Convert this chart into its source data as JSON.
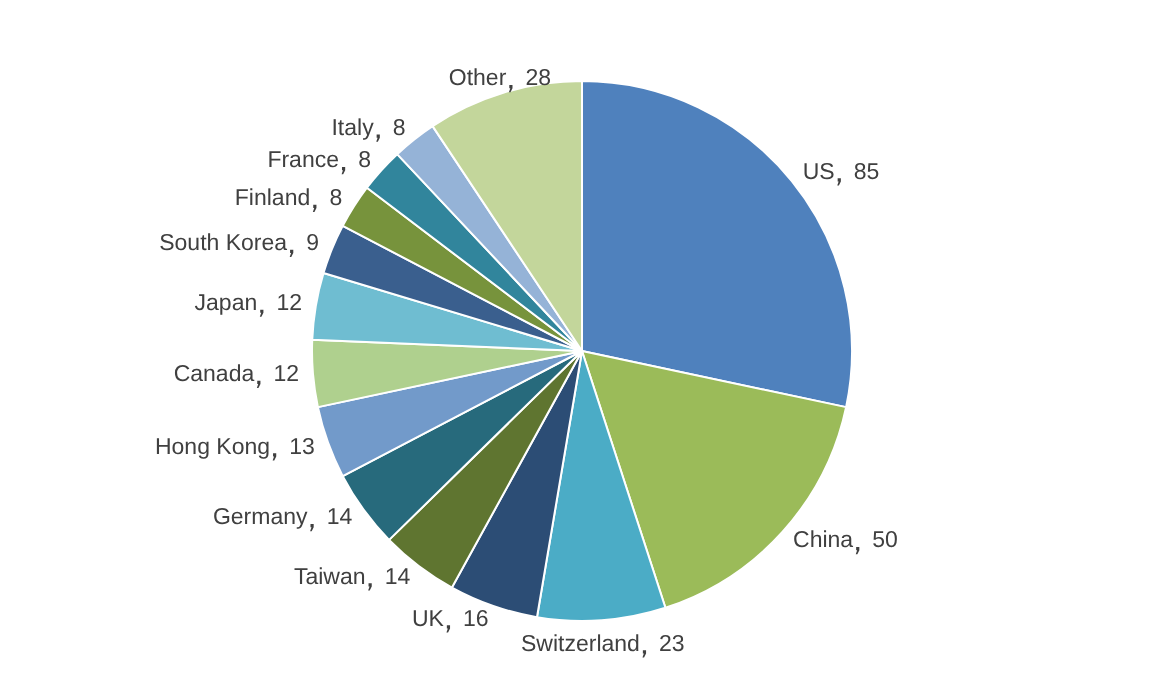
{
  "chart_data": {
    "type": "pie",
    "categories": [
      "US",
      "China",
      "Switzerland",
      "UK",
      "Taiwan",
      "Germany",
      "Hong Kong",
      "Canada",
      "Japan",
      "South Korea",
      "Finland",
      "France",
      "Italy",
      "Other"
    ],
    "values": [
      85,
      50,
      23,
      16,
      14,
      14,
      13,
      12,
      12,
      9,
      8,
      8,
      8,
      28
    ],
    "colors": [
      "#4f81bd",
      "#9bbb59",
      "#4bacc6",
      "#2c4d75",
      "#5f7530",
      "#276a7c",
      "#729aca",
      "#afd08e",
      "#6fbdd1",
      "#3a5f8e",
      "#77933c",
      "#31859c",
      "#95b3d7",
      "#c3d69b"
    ],
    "data_labels": true,
    "legend": false
  }
}
